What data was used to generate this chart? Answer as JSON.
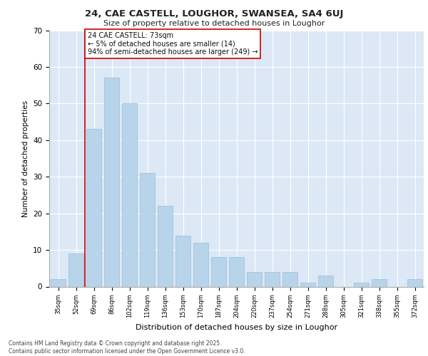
{
  "title_line1": "24, CAE CASTELL, LOUGHOR, SWANSEA, SA4 6UJ",
  "title_line2": "Size of property relative to detached houses in Loughor",
  "xlabel": "Distribution of detached houses by size in Loughor",
  "ylabel": "Number of detached properties",
  "categories": [
    "35sqm",
    "52sqm",
    "69sqm",
    "86sqm",
    "102sqm",
    "119sqm",
    "136sqm",
    "153sqm",
    "170sqm",
    "187sqm",
    "204sqm",
    "220sqm",
    "237sqm",
    "254sqm",
    "271sqm",
    "288sqm",
    "305sqm",
    "321sqm",
    "338sqm",
    "355sqm",
    "372sqm"
  ],
  "values": [
    2,
    9,
    43,
    57,
    50,
    31,
    22,
    14,
    12,
    8,
    8,
    4,
    4,
    4,
    1,
    3,
    0,
    1,
    2,
    0,
    2
  ],
  "bar_color": "#b8d4ea",
  "bar_edge_color": "#9abcd8",
  "vline_x_index": 2,
  "vline_color": "#cc0000",
  "ylim": [
    0,
    70
  ],
  "yticks": [
    0,
    10,
    20,
    30,
    40,
    50,
    60,
    70
  ],
  "annotation_text": "24 CAE CASTELL: 73sqm\n← 5% of detached houses are smaller (14)\n94% of semi-detached houses are larger (249) →",
  "annotation_box_color": "#ffffff",
  "annotation_box_edge": "#cc0000",
  "bg_color": "#dce8f5",
  "footer_line1": "Contains HM Land Registry data © Crown copyright and database right 2025.",
  "footer_line2": "Contains public sector information licensed under the Open Government Licence v3.0."
}
